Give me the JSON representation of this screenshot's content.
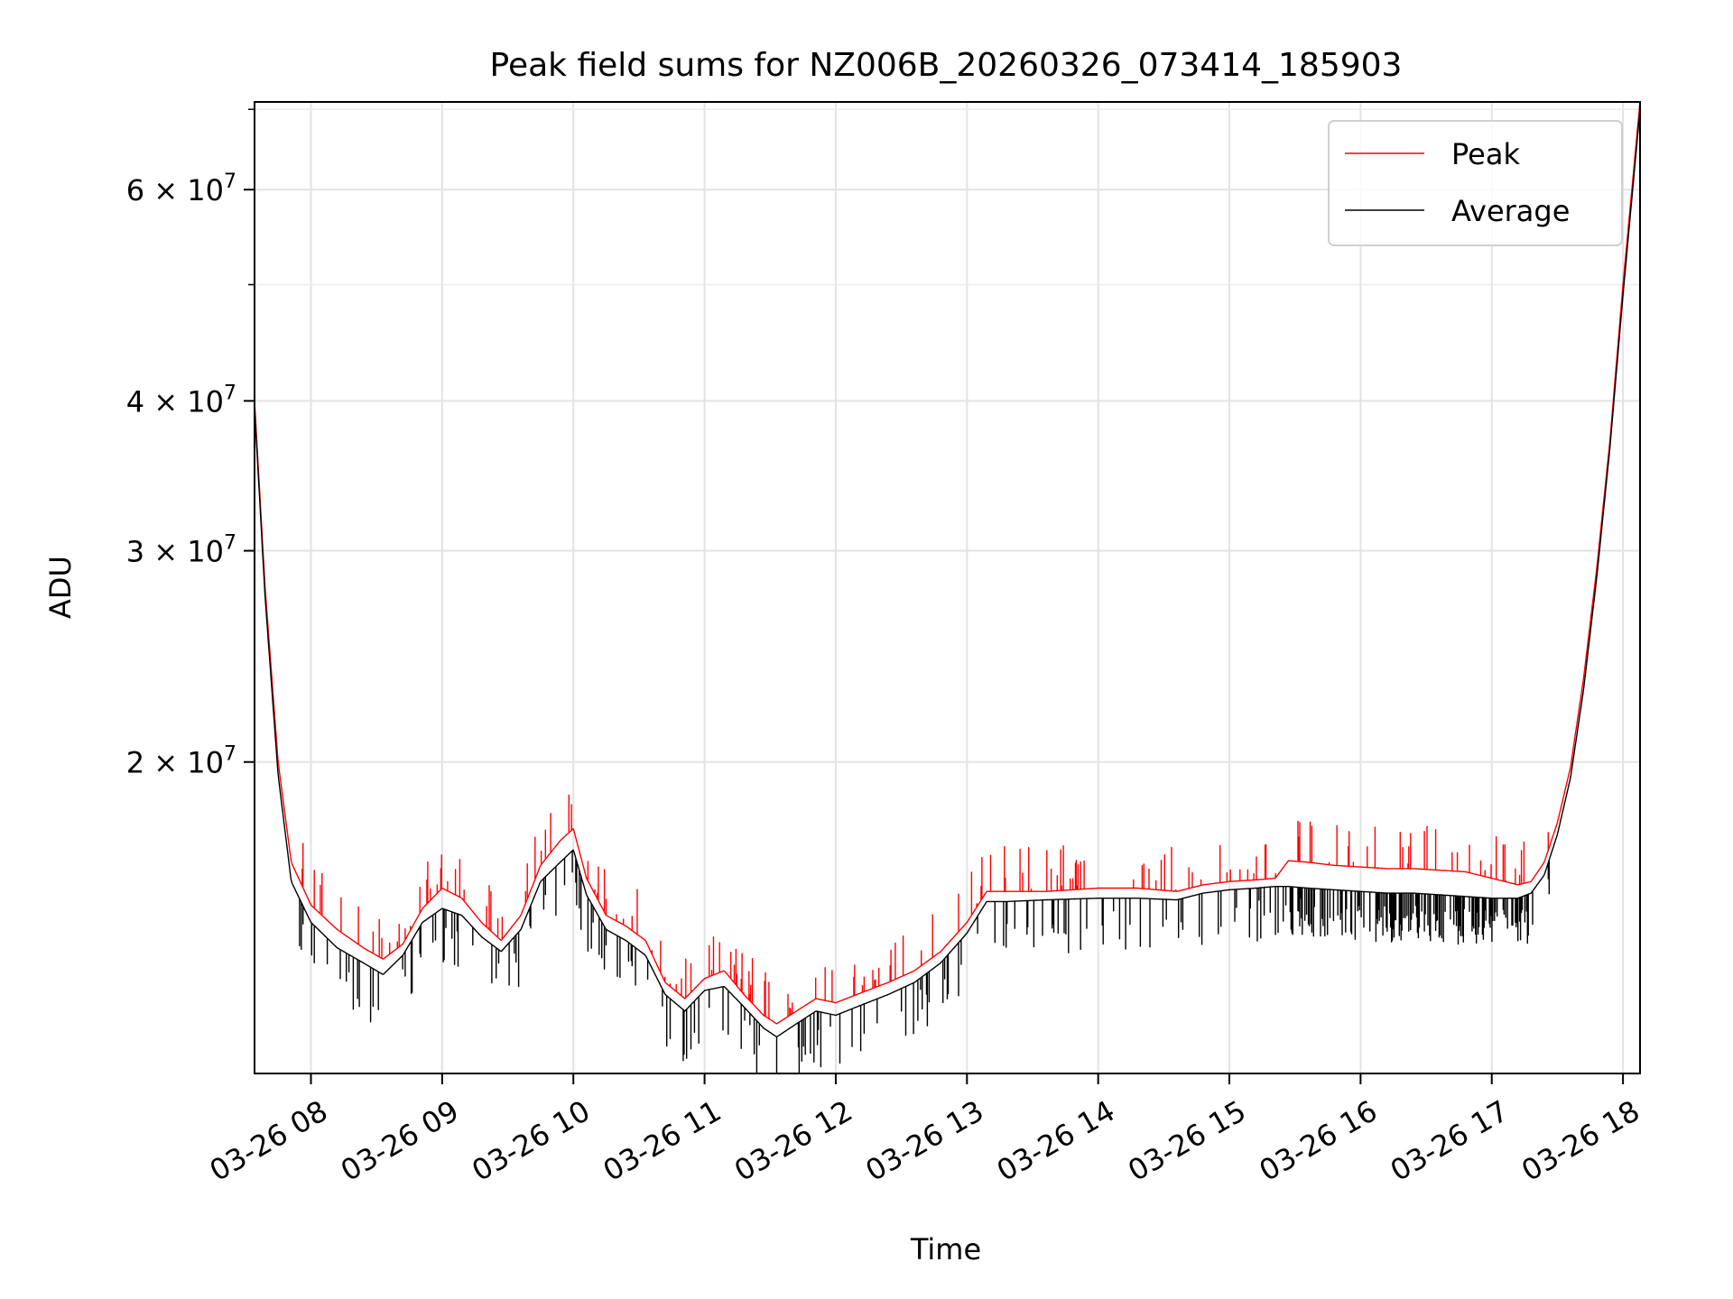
{
  "chart_data": {
    "type": "line",
    "title": "Peak field sums for NZ006B_20260326_073414_185903",
    "xlabel": "Time",
    "ylabel": "ADU",
    "x_unit": "hour of day (2026-03-26)",
    "xlim": [
      7.57,
      18.13
    ],
    "ylim": [
      11000000,
      71000000
    ],
    "yscale": "log",
    "grid": true,
    "legend_position": "top-right",
    "x_ticks": [
      {
        "value": 8,
        "label": "03-26 08"
      },
      {
        "value": 9,
        "label": "03-26 09"
      },
      {
        "value": 10,
        "label": "03-26 10"
      },
      {
        "value": 11,
        "label": "03-26 11"
      },
      {
        "value": 12,
        "label": "03-26 12"
      },
      {
        "value": 13,
        "label": "03-26 13"
      },
      {
        "value": 14,
        "label": "03-26 14"
      },
      {
        "value": 15,
        "label": "03-26 15"
      },
      {
        "value": 16,
        "label": "03-26 16"
      },
      {
        "value": 17,
        "label": "03-26 17"
      },
      {
        "value": 18,
        "label": "03-26 18"
      }
    ],
    "y_ticks": [
      {
        "value": 20000000,
        "base": "2",
        "exp": "7"
      },
      {
        "value": 30000000,
        "base": "3",
        "exp": "7"
      },
      {
        "value": 40000000,
        "base": "4",
        "exp": "7"
      },
      {
        "value": 60000000,
        "base": "6",
        "exp": "7"
      }
    ],
    "y_minor_ticks": [
      50000000,
      70000000
    ],
    "series": [
      {
        "name": "Peak",
        "color": "#ff0000",
        "x": [
          7.57,
          7.65,
          7.75,
          7.85,
          8.0,
          8.2,
          8.4,
          8.55,
          8.7,
          8.85,
          9.0,
          9.15,
          9.3,
          9.45,
          9.6,
          9.75,
          9.9,
          10.0,
          10.1,
          10.25,
          10.4,
          10.55,
          10.7,
          10.85,
          11.0,
          11.15,
          11.3,
          11.45,
          11.55,
          11.7,
          11.85,
          12.0,
          12.2,
          12.4,
          12.6,
          12.8,
          13.0,
          13.15,
          13.3,
          13.6,
          14.0,
          14.3,
          14.6,
          14.8,
          15.0,
          15.2,
          15.35,
          15.45,
          15.6,
          15.8,
          16.0,
          16.2,
          16.4,
          16.6,
          16.8,
          17.0,
          17.2,
          17.3,
          17.4,
          17.5,
          17.6,
          17.7,
          17.8,
          17.9,
          18.0,
          18.13
        ],
        "y": [
          40000000,
          28000000,
          20000000,
          16500000,
          15200000,
          14500000,
          14000000,
          13700000,
          14100000,
          15100000,
          15700000,
          15400000,
          14700000,
          14200000,
          14900000,
          16400000,
          17200000,
          17600000,
          16000000,
          14900000,
          14600000,
          14200000,
          13100000,
          12700000,
          13200000,
          13400000,
          12800000,
          12300000,
          12100000,
          12400000,
          12700000,
          12600000,
          12850000,
          13100000,
          13400000,
          13900000,
          14700000,
          15600000,
          15600000,
          15600000,
          15700000,
          15700000,
          15600000,
          15800000,
          15900000,
          15950000,
          16000000,
          16550000,
          16500000,
          16400000,
          16350000,
          16300000,
          16300000,
          16250000,
          16200000,
          16000000,
          15800000,
          15900000,
          16500000,
          17800000,
          19800000,
          23500000,
          29000000,
          37000000,
          50000000,
          71000000
        ]
      },
      {
        "name": "Average",
        "color": "#000000",
        "x": [
          7.57,
          7.65,
          7.75,
          7.85,
          8.0,
          8.2,
          8.4,
          8.55,
          8.7,
          8.85,
          9.0,
          9.15,
          9.3,
          9.45,
          9.6,
          9.75,
          9.9,
          10.0,
          10.1,
          10.25,
          10.4,
          10.55,
          10.7,
          10.85,
          11.0,
          11.15,
          11.3,
          11.45,
          11.55,
          11.7,
          11.85,
          12.0,
          12.2,
          12.4,
          12.6,
          12.8,
          13.0,
          13.15,
          13.3,
          13.6,
          14.0,
          14.3,
          14.6,
          14.8,
          15.0,
          15.2,
          15.35,
          15.45,
          15.6,
          15.8,
          16.0,
          16.2,
          16.4,
          16.6,
          16.8,
          17.0,
          17.2,
          17.3,
          17.4,
          17.5,
          17.6,
          17.7,
          17.8,
          17.9,
          18.0,
          18.13
        ],
        "y": [
          39500000,
          27500000,
          19500000,
          15900000,
          14700000,
          14000000,
          13600000,
          13300000,
          13800000,
          14700000,
          15100000,
          14900000,
          14300000,
          13900000,
          14500000,
          15900000,
          16500000,
          16900000,
          15500000,
          14500000,
          14200000,
          13800000,
          12800000,
          12400000,
          12900000,
          13000000,
          12500000,
          12000000,
          11800000,
          12100000,
          12400000,
          12300000,
          12550000,
          12800000,
          13100000,
          13600000,
          14400000,
          15300000,
          15300000,
          15350000,
          15400000,
          15400000,
          15350000,
          15550000,
          15650000,
          15700000,
          15750000,
          15750000,
          15700000,
          15650000,
          15600000,
          15550000,
          15550000,
          15500000,
          15450000,
          15400000,
          15400000,
          15550000,
          16100000,
          17400000,
          19400000,
          23000000,
          28500000,
          36500000,
          49000000,
          70000000
        ]
      }
    ]
  }
}
